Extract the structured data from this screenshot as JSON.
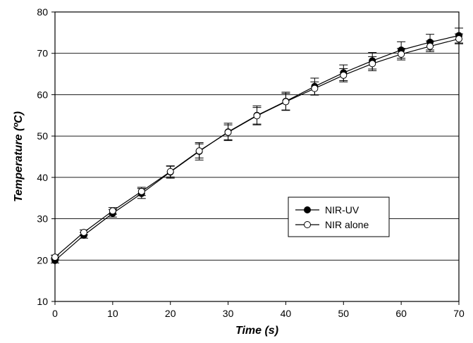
{
  "chart_data": {
    "type": "line",
    "title": "",
    "xlabel": "Time (s)",
    "ylabel": "Temperature (ºC)",
    "xlim": [
      0,
      70
    ],
    "ylim": [
      10,
      80
    ],
    "x_ticks": [
      "0",
      "10",
      "20",
      "30",
      "40",
      "50",
      "60",
      "70"
    ],
    "y_ticks": [
      "10",
      "20",
      "30",
      "40",
      "50",
      "60",
      "70",
      "80"
    ],
    "grid": "horizontal",
    "legend_position": "center-right",
    "x": [
      0,
      5,
      10,
      15,
      20,
      25,
      30,
      35,
      40,
      45,
      50,
      55,
      60,
      65,
      70
    ],
    "series": [
      {
        "name": "NIR-UV",
        "marker": "filled-circle",
        "color": "#000000",
        "values": [
          19.9,
          26.0,
          31.3,
          36.1,
          41.3,
          46.3,
          51.0,
          55.0,
          58.4,
          62.0,
          65.3,
          68.2,
          70.8,
          72.7,
          74.3
        ],
        "errors": [
          0.6,
          0.7,
          0.9,
          1.2,
          1.5,
          2.1,
          2.1,
          2.3,
          2.2,
          2.0,
          1.9,
          2.0,
          2.0,
          1.9,
          1.8
        ]
      },
      {
        "name": "NIR alone",
        "marker": "open-circle",
        "color": "#000000",
        "values": [
          20.7,
          26.7,
          31.9,
          36.6,
          41.4,
          46.4,
          50.9,
          54.9,
          58.3,
          61.5,
          64.7,
          67.5,
          69.8,
          71.7,
          73.5
        ],
        "errors": [
          0.5,
          0.6,
          0.8,
          1.0,
          1.3,
          1.7,
          1.8,
          2.0,
          2.0,
          1.6,
          1.6,
          1.7,
          1.4,
          1.3,
          1.2
        ]
      }
    ]
  }
}
